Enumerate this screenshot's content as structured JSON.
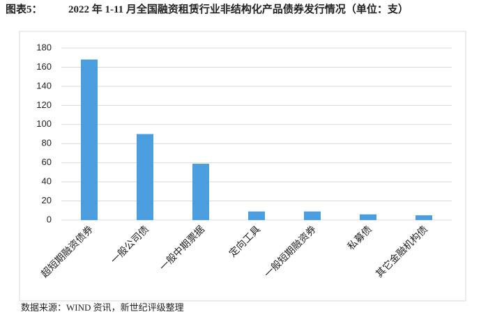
{
  "chart_data": {
    "type": "bar",
    "figure_label": "图表5：",
    "title": "2022 年 1-11 月全国融资租赁行业非结构化产品债券发行情况（单位：支）",
    "categories": [
      "超短期融资债券",
      "一般公司债",
      "一般中期票据",
      "定向工具",
      "一般短期融资券",
      "私募债",
      "其它金融机构债"
    ],
    "values": [
      168,
      90,
      59,
      9,
      9,
      6,
      5
    ],
    "color": "#4a9ede",
    "ylim": [
      0,
      180
    ],
    "yticks": [
      0,
      20,
      40,
      60,
      80,
      100,
      120,
      140,
      160,
      180
    ],
    "grid": true,
    "source": "数据来源：WIND 资讯，新世纪评级整理"
  }
}
